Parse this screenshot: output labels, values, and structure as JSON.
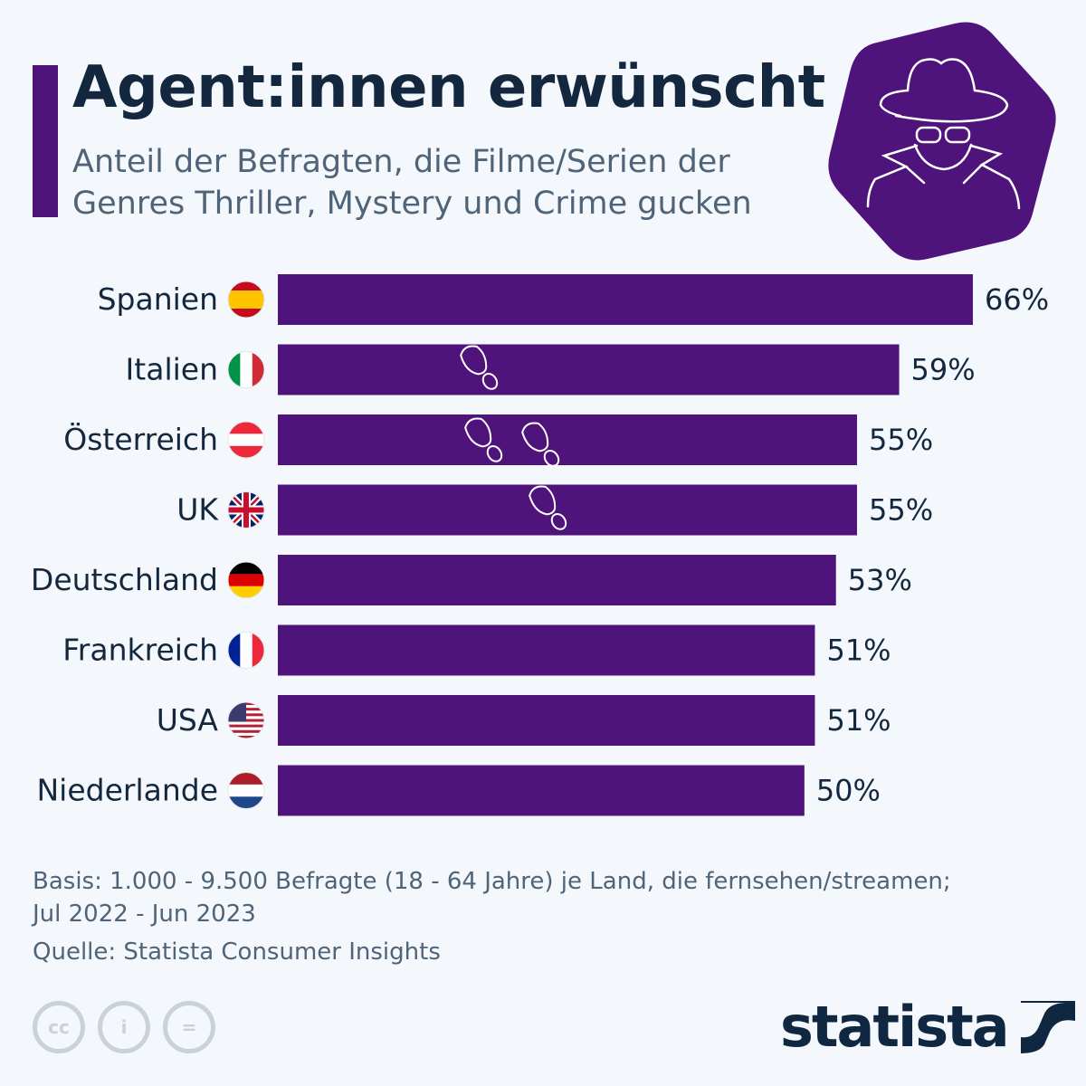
{
  "header": {
    "title": "Agent:innen erwünscht",
    "subtitle": "Anteil der Befragten, die Filme/Serien der Genres Thriller, Mystery und Crime gucken"
  },
  "icons": {
    "badge": "spy-icon",
    "decoration": "footprints-icon"
  },
  "colors": {
    "bar": "#4f137c",
    "text": "#13283f",
    "muted": "#4f6478"
  },
  "chart_data": {
    "type": "bar",
    "orientation": "horizontal",
    "categories": [
      "Spanien",
      "Italien",
      "Österreich",
      "UK",
      "Deutschland",
      "Frankreich",
      "USA",
      "Niederlande"
    ],
    "flags": [
      "es",
      "it",
      "at",
      "uk",
      "de",
      "fr",
      "us",
      "nl"
    ],
    "values": [
      66,
      59,
      55,
      55,
      53,
      51,
      51,
      50
    ],
    "value_labels": [
      "66%",
      "59%",
      "55%",
      "55%",
      "53%",
      "51%",
      "51%",
      "50%"
    ],
    "unit": "%",
    "xlim": [
      0,
      66
    ],
    "grid": false
  },
  "footer": {
    "basis": "Basis: 1.000 - 9.500 Befragte (18 - 64 Jahre) je Land, die fernsehen/streamen;",
    "period": "Jul 2022 - Jun 2023",
    "source": "Quelle: Statista Consumer Insights",
    "license": {
      "cc": "cc",
      "by": "i",
      "nd": "="
    },
    "brand": "statista"
  }
}
